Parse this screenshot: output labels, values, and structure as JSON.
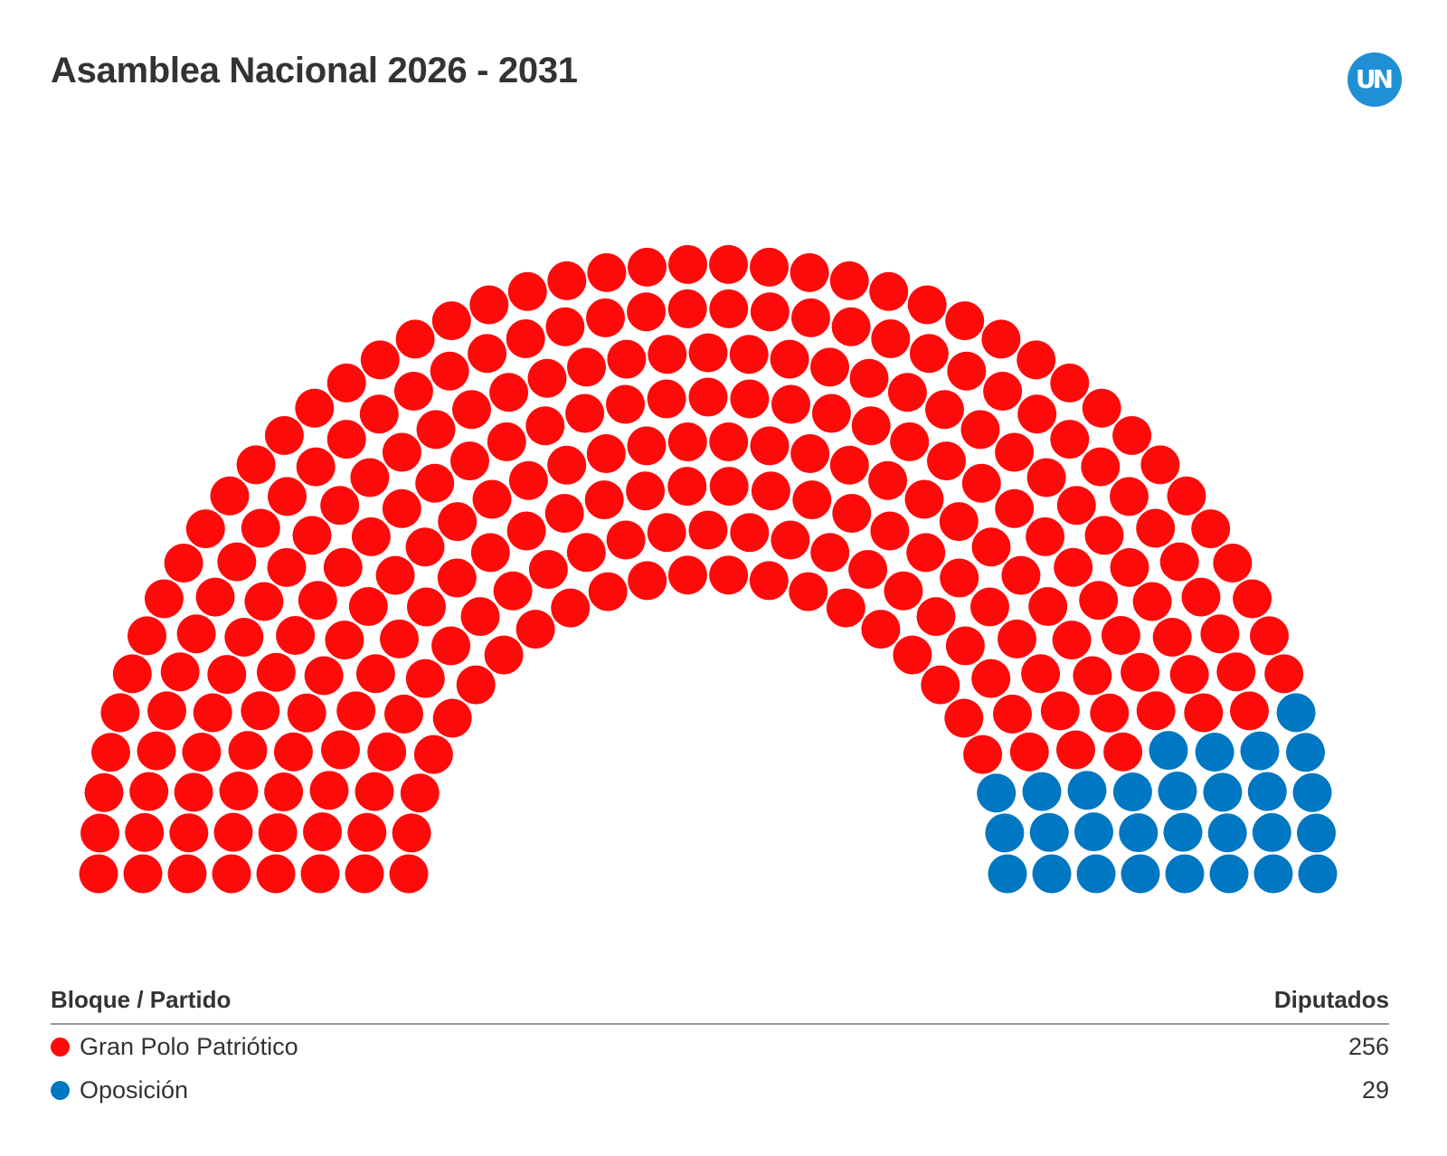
{
  "title": "Asamblea Nacional 2026 - 2031",
  "logo": {
    "text": "UN",
    "color": "#1f8fd6"
  },
  "legend": {
    "header_party": "Bloque / Partido",
    "header_seats": "Diputados"
  },
  "chart_data": {
    "type": "parliament",
    "title": "Asamblea Nacional 2026 - 2031",
    "total_seats": 285,
    "series": [
      {
        "name": "Gran Polo Patriótico",
        "seats": 256,
        "color": "#ff0a0a"
      },
      {
        "name": "Oposición",
        "seats": 29,
        "color": "#0077c2"
      }
    ]
  }
}
